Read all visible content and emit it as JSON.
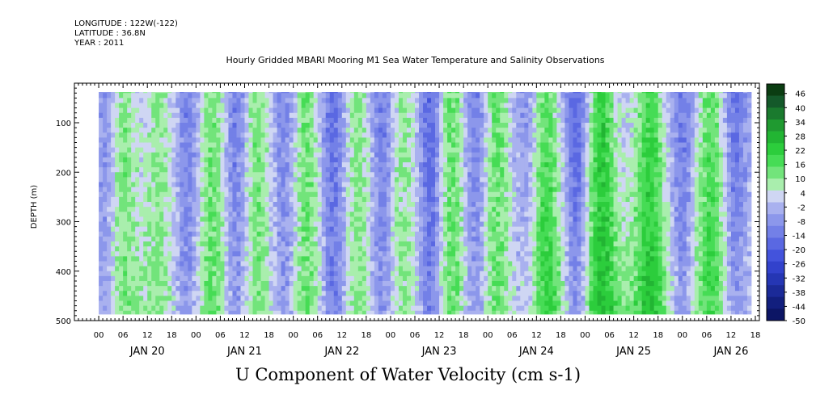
{
  "header": {
    "longitude": "LONGITUDE : 122W(-122)",
    "latitude": "LATITUDE : 36.8N",
    "year": "YEAR : 2011"
  },
  "chart_data": {
    "type": "heatmap",
    "title": "Hourly Gridded MBARI Mooring M1 Sea Water Temperature and Salinity Observations",
    "xlabel": "",
    "ylabel": "DEPTH (m)",
    "footer_label": "U Component of Water Velocity (cm s-1)",
    "x_hour_ticks": [
      "00",
      "06",
      "12",
      "18",
      "00",
      "06",
      "12",
      "18",
      "00",
      "06",
      "12",
      "18",
      "00",
      "06",
      "12",
      "18",
      "00",
      "06",
      "12",
      "18",
      "00",
      "06",
      "12",
      "18",
      "00",
      "06",
      "12",
      "18"
    ],
    "x_date_labels": [
      "JAN 20",
      "JAN 21",
      "JAN 22",
      "JAN 23",
      "JAN 24",
      "JAN 25",
      "JAN 26"
    ],
    "y_ticks": [
      "100",
      "200",
      "300",
      "400",
      "500"
    ],
    "yrange": [
      20,
      500
    ],
    "inverted_y": true,
    "xrange_hours_from_jan19_18h": [
      0,
      169
    ],
    "data_start_hours": 6,
    "data_end_hours": 167,
    "colorbar_labels": [
      "46",
      "40",
      "34",
      "28",
      "22",
      "16",
      "10",
      "4",
      "-2",
      "-8",
      "-14",
      "-20",
      "-26",
      "-32",
      "-38",
      "-44",
      "-50"
    ],
    "colorbar_colors": [
      "#0b3d12",
      "#14592a",
      "#1a7a2e",
      "#1f9a30",
      "#22b533",
      "#2ccd3c",
      "#46dc55",
      "#72e47b",
      "#a9eead",
      "#cfd6f3",
      "#a9b1ef",
      "#8c97eb",
      "#7380e7",
      "#5a68e2",
      "#4353dc",
      "#3242cc",
      "#2536b4",
      "#1b2a98",
      "#121f7e",
      "#0c1565"
    ],
    "colorbar_range": [
      -50,
      50
    ],
    "colorbar_step": 6,
    "palette_note": "green = positive (eastward), blue = negative (westward)",
    "green_columns": [
      {
        "center": 12,
        "strength": 14
      },
      {
        "center": 21,
        "strength": 12
      },
      {
        "center": 34,
        "strength": 16
      },
      {
        "center": 45,
        "strength": 14
      },
      {
        "center": 57,
        "strength": 15
      },
      {
        "center": 70,
        "strength": 13
      },
      {
        "center": 81,
        "strength": 12
      },
      {
        "center": 93,
        "strength": 17
      },
      {
        "center": 104,
        "strength": 16
      },
      {
        "center": 116,
        "strength": 18
      },
      {
        "center": 130,
        "strength": 22
      },
      {
        "center": 142,
        "strength": 20
      },
      {
        "center": 157,
        "strength": 16
      }
    ],
    "blue_columns": [
      {
        "center": 8,
        "strength": -8
      },
      {
        "center": 28,
        "strength": -10
      },
      {
        "center": 40,
        "strength": -12
      },
      {
        "center": 52,
        "strength": -10
      },
      {
        "center": 64,
        "strength": -14
      },
      {
        "center": 76,
        "strength": -12
      },
      {
        "center": 88,
        "strength": -16
      },
      {
        "center": 99,
        "strength": -12
      },
      {
        "center": 112,
        "strength": -10
      },
      {
        "center": 124,
        "strength": -16
      },
      {
        "center": 150,
        "strength": -12
      },
      {
        "center": 163,
        "strength": -14
      }
    ]
  }
}
